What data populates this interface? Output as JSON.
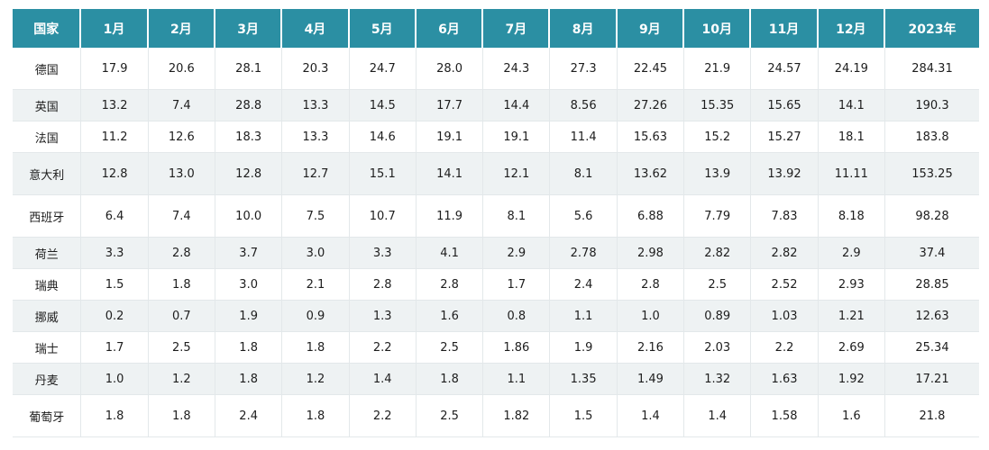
{
  "table": {
    "headers": [
      "国家",
      "1月",
      "2月",
      "3月",
      "4月",
      "5月",
      "6月",
      "7月",
      "8月",
      "9月",
      "10月",
      "11月",
      "12月",
      "2023年"
    ],
    "rows": [
      [
        "德国",
        "17.9",
        "20.6",
        "28.1",
        "20.3",
        "24.7",
        "28.0",
        "24.3",
        "27.3",
        "22.45",
        "21.9",
        "24.57",
        "24.19",
        "284.31"
      ],
      [
        "英国",
        "13.2",
        "7.4",
        "28.8",
        "13.3",
        "14.5",
        "17.7",
        "14.4",
        "8.56",
        "27.26",
        "15.35",
        "15.65",
        "14.1",
        "190.3"
      ],
      [
        "法国",
        "11.2",
        "12.6",
        "18.3",
        "13.3",
        "14.6",
        "19.1",
        "19.1",
        "11.4",
        "15.63",
        "15.2",
        "15.27",
        "18.1",
        "183.8"
      ],
      [
        "意大利",
        "12.8",
        "13.0",
        "12.8",
        "12.7",
        "15.1",
        "14.1",
        "12.1",
        "8.1",
        "13.62",
        "13.9",
        "13.92",
        "11.11",
        "153.25"
      ],
      [
        "西班牙",
        "6.4",
        "7.4",
        "10.0",
        "7.5",
        "10.7",
        "11.9",
        "8.1",
        "5.6",
        "6.88",
        "7.79",
        "7.83",
        "8.18",
        "98.28"
      ],
      [
        "荷兰",
        "3.3",
        "2.8",
        "3.7",
        "3.0",
        "3.3",
        "4.1",
        "2.9",
        "2.78",
        "2.98",
        "2.82",
        "2.82",
        "2.9",
        "37.4"
      ],
      [
        "瑞典",
        "1.5",
        "1.8",
        "3.0",
        "2.1",
        "2.8",
        "2.8",
        "1.7",
        "2.4",
        "2.8",
        "2.5",
        "2.52",
        "2.93",
        "28.85"
      ],
      [
        "挪威",
        "0.2",
        "0.7",
        "1.9",
        "0.9",
        "1.3",
        "1.6",
        "0.8",
        "1.1",
        "1.0",
        "0.89",
        "1.03",
        "1.21",
        "12.63"
      ],
      [
        "瑞士",
        "1.7",
        "2.5",
        "1.8",
        "1.8",
        "2.2",
        "2.5",
        "1.86",
        "1.9",
        "2.16",
        "2.03",
        "2.2",
        "2.69",
        "25.34"
      ],
      [
        "丹麦",
        "1.0",
        "1.2",
        "1.8",
        "1.2",
        "1.4",
        "1.8",
        "1.1",
        "1.35",
        "1.49",
        "1.32",
        "1.63",
        "1.92",
        "17.21"
      ],
      [
        "葡萄牙",
        "1.8",
        "1.8",
        "2.4",
        "1.8",
        "2.2",
        "2.5",
        "1.82",
        "1.5",
        "1.4",
        "1.4",
        "1.58",
        "1.6",
        "21.8"
      ]
    ]
  },
  "colors": {
    "header_bg": "#2b8fa3",
    "header_text": "#ffffff",
    "stripe_bg": "#eef2f3"
  }
}
